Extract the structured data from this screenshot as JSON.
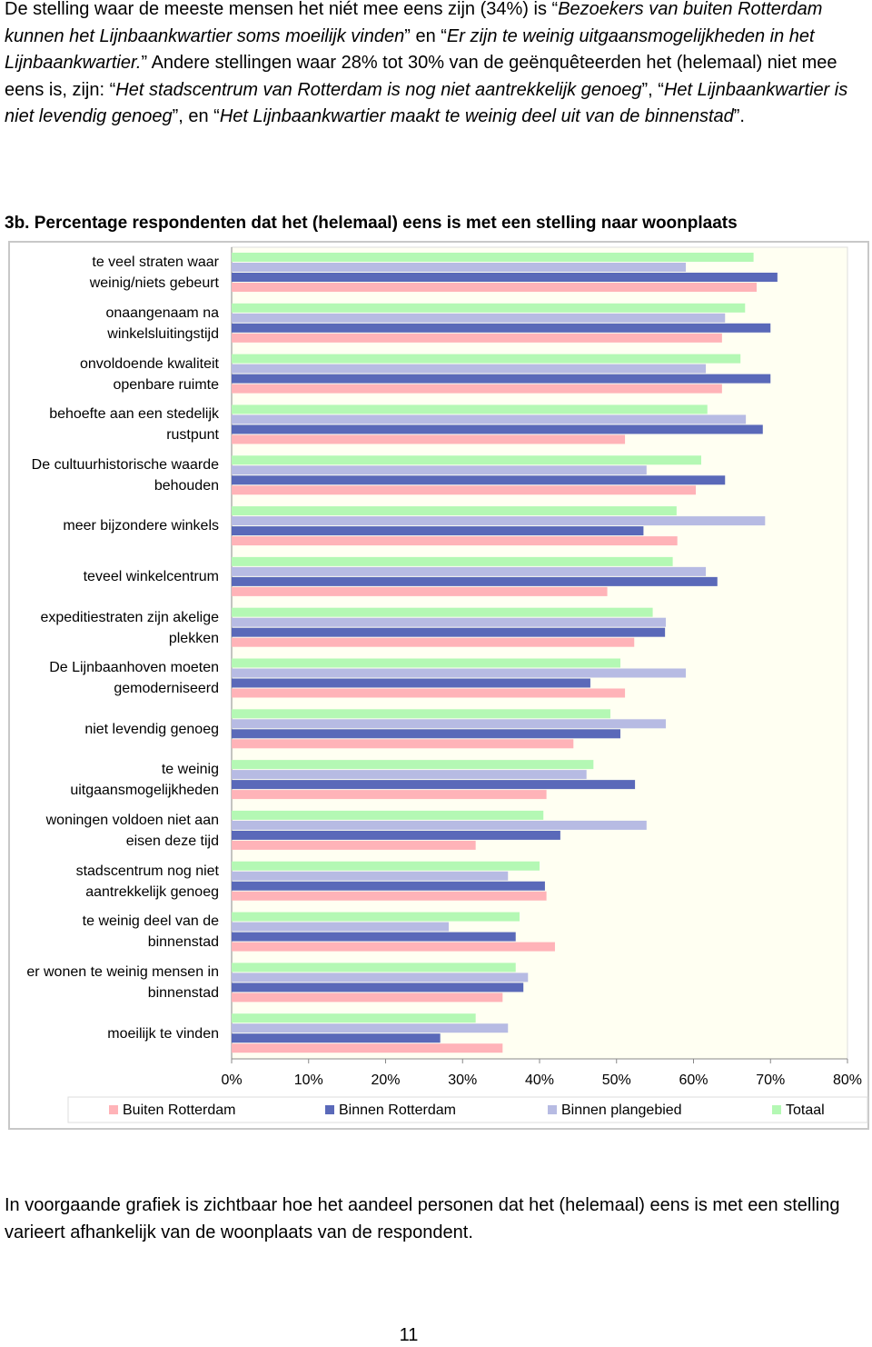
{
  "intro": {
    "segments": [
      {
        "text": "De stelling waar de meeste mensen het niét mee eens zijn (34%) is “",
        "italic": false
      },
      {
        "text": "Bezoekers van buiten Rotterdam kunnen het Lijnbaankwartier soms moeilijk vinden",
        "italic": true
      },
      {
        "text": "” en “",
        "italic": false
      },
      {
        "text": "Er zijn te weinig uitgaansmogelijkheden in het Lijnbaankwartier.",
        "italic": true
      },
      {
        "text": "” Andere stellingen waar 28% tot 30% van de geënquêteerden het (helemaal) niet mee eens is, zijn: “",
        "italic": false
      },
      {
        "text": "Het stadscentrum van Rotterdam is nog niet aantrekkelijk genoeg",
        "italic": true
      },
      {
        "text": "”, “",
        "italic": false
      },
      {
        "text": "Het Lijnbaankwartier is niet levendig genoeg",
        "italic": true
      },
      {
        "text": "”, en “",
        "italic": false
      },
      {
        "text": "Het Lijnbaankwartier maakt te weinig deel uit van de binnenstad",
        "italic": true
      },
      {
        "text": "”.",
        "italic": false
      }
    ]
  },
  "chart_data": {
    "type": "bar",
    "orientation": "horizontal",
    "title": "3b. Percentage respondenten dat het (helemaal) eens is met een stelling naar woonplaats",
    "categories": [
      "te veel straten waar weinig/niets gebeurt",
      "onaangenaam na winkelsluitingstijd",
      "onvoldoende kwaliteit openbare ruimte",
      "behoefte aan een stedelijk rustpunt",
      "De cultuurhistorische waarde behouden",
      "meer bijzondere winkels",
      "teveel winkelcentrum",
      "expeditiestraten zijn akelige plekken",
      "De Lijnbaanhoven moeten gemoderniseerd",
      "niet levendig genoeg",
      "te weinig uitgaansmogelijkheden",
      "woningen voldoen niet aan eisen deze tijd",
      "stadscentrum nog niet aantrekkelijk genoeg",
      "te weinig deel van de binnenstad",
      "er wonen te weinig mensen in binnenstad",
      "moeilijk te vinden"
    ],
    "series": [
      {
        "name": "Buiten Rotterdam",
        "color": "#ffb3b8",
        "values": [
          68.2,
          63.7,
          63.7,
          51.1,
          60.3,
          57.9,
          48.8,
          52.3,
          51.1,
          44.4,
          40.9,
          31.7,
          40.9,
          42.0,
          35.2,
          35.2
        ]
      },
      {
        "name": "Binnen Rotterdam",
        "color": "#5a69b9",
        "values": [
          70.9,
          70.0,
          70.0,
          69.0,
          64.1,
          53.5,
          63.1,
          56.3,
          46.6,
          50.5,
          52.4,
          42.7,
          40.7,
          36.9,
          37.9,
          27.1
        ]
      },
      {
        "name": "Binnen plangebied",
        "color": "#b7bbe3",
        "values": [
          59.0,
          64.1,
          61.6,
          66.8,
          53.9,
          69.3,
          61.6,
          56.4,
          59.0,
          56.4,
          46.1,
          53.9,
          35.9,
          28.2,
          38.5,
          35.9
        ]
      },
      {
        "name": "Totaal",
        "color": "#b4f8b4",
        "values": [
          67.8,
          66.7,
          66.1,
          61.8,
          61.0,
          57.8,
          57.3,
          54.7,
          50.5,
          49.2,
          47.0,
          40.5,
          40.0,
          37.4,
          36.9,
          31.7
        ]
      }
    ],
    "xlim": [
      0,
      80
    ],
    "xticks": [
      {
        "value": 0,
        "label": "0%"
      },
      {
        "value": 10,
        "label": "10%"
      },
      {
        "value": 20,
        "label": "20%"
      },
      {
        "value": 30,
        "label": "30%"
      },
      {
        "value": 40,
        "label": "40%"
      },
      {
        "value": 50,
        "label": "50%"
      },
      {
        "value": 60,
        "label": "60%"
      },
      {
        "value": 70,
        "label": "70%"
      },
      {
        "value": 80,
        "label": "80%"
      }
    ],
    "legend": "bottom"
  },
  "outro": "In voorgaande grafiek is zichtbaar hoe het aandeel personen dat het (helemaal) eens is met een stelling varieert afhankelijk van de woonplaats van de respondent.",
  "page_number": "11"
}
